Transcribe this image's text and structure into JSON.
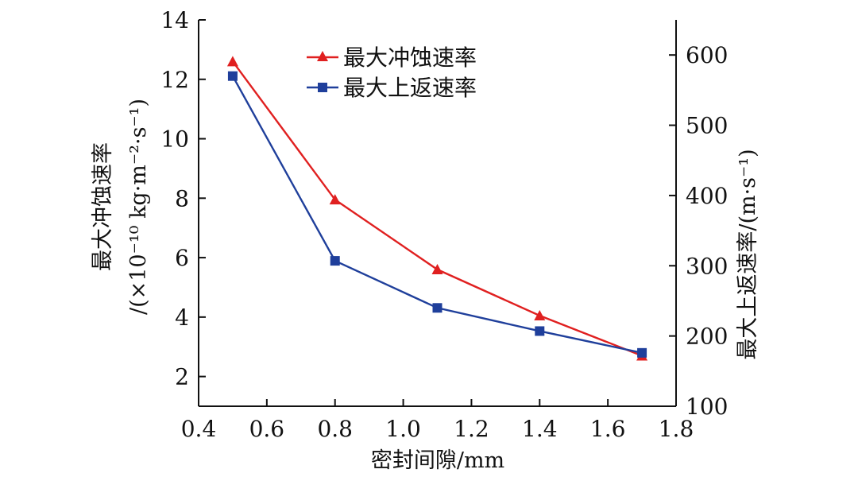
{
  "chart_data": {
    "type": "line",
    "x": [
      0.5,
      0.8,
      1.1,
      1.4,
      1.7
    ],
    "xlabel": "密封间隙/mm",
    "xlim": [
      0.4,
      1.8
    ],
    "x_ticks": [
      "0.4",
      "0.6",
      "0.8",
      "1.0",
      "1.2",
      "1.4",
      "1.6",
      "1.8"
    ],
    "ylabel_left_line1": "最大冲蚀速率",
    "ylabel_left_line2": "/(×10⁻¹⁰ kg·m⁻²·s⁻¹)",
    "ylim_left": [
      1,
      14
    ],
    "y_ticks_left": [
      "2",
      "4",
      "6",
      "8",
      "10",
      "12",
      "14"
    ],
    "ylabel_right": "最大上返速率/(m·s⁻¹)",
    "ylim_right": [
      100,
      650
    ],
    "y_ticks_right": [
      "100",
      "200",
      "300",
      "400",
      "500",
      "600"
    ],
    "grid": false,
    "legend_position": "top-center",
    "series": [
      {
        "name": "最大冲蚀速率",
        "axis": "left",
        "marker": "triangle",
        "color": "#e02020",
        "values": [
          12.6,
          7.95,
          5.6,
          4.05,
          2.7
        ]
      },
      {
        "name": "最大上返速率",
        "axis": "right",
        "marker": "square",
        "color": "#1f3f9b",
        "values": [
          570,
          307,
          240,
          207,
          176
        ]
      }
    ]
  }
}
